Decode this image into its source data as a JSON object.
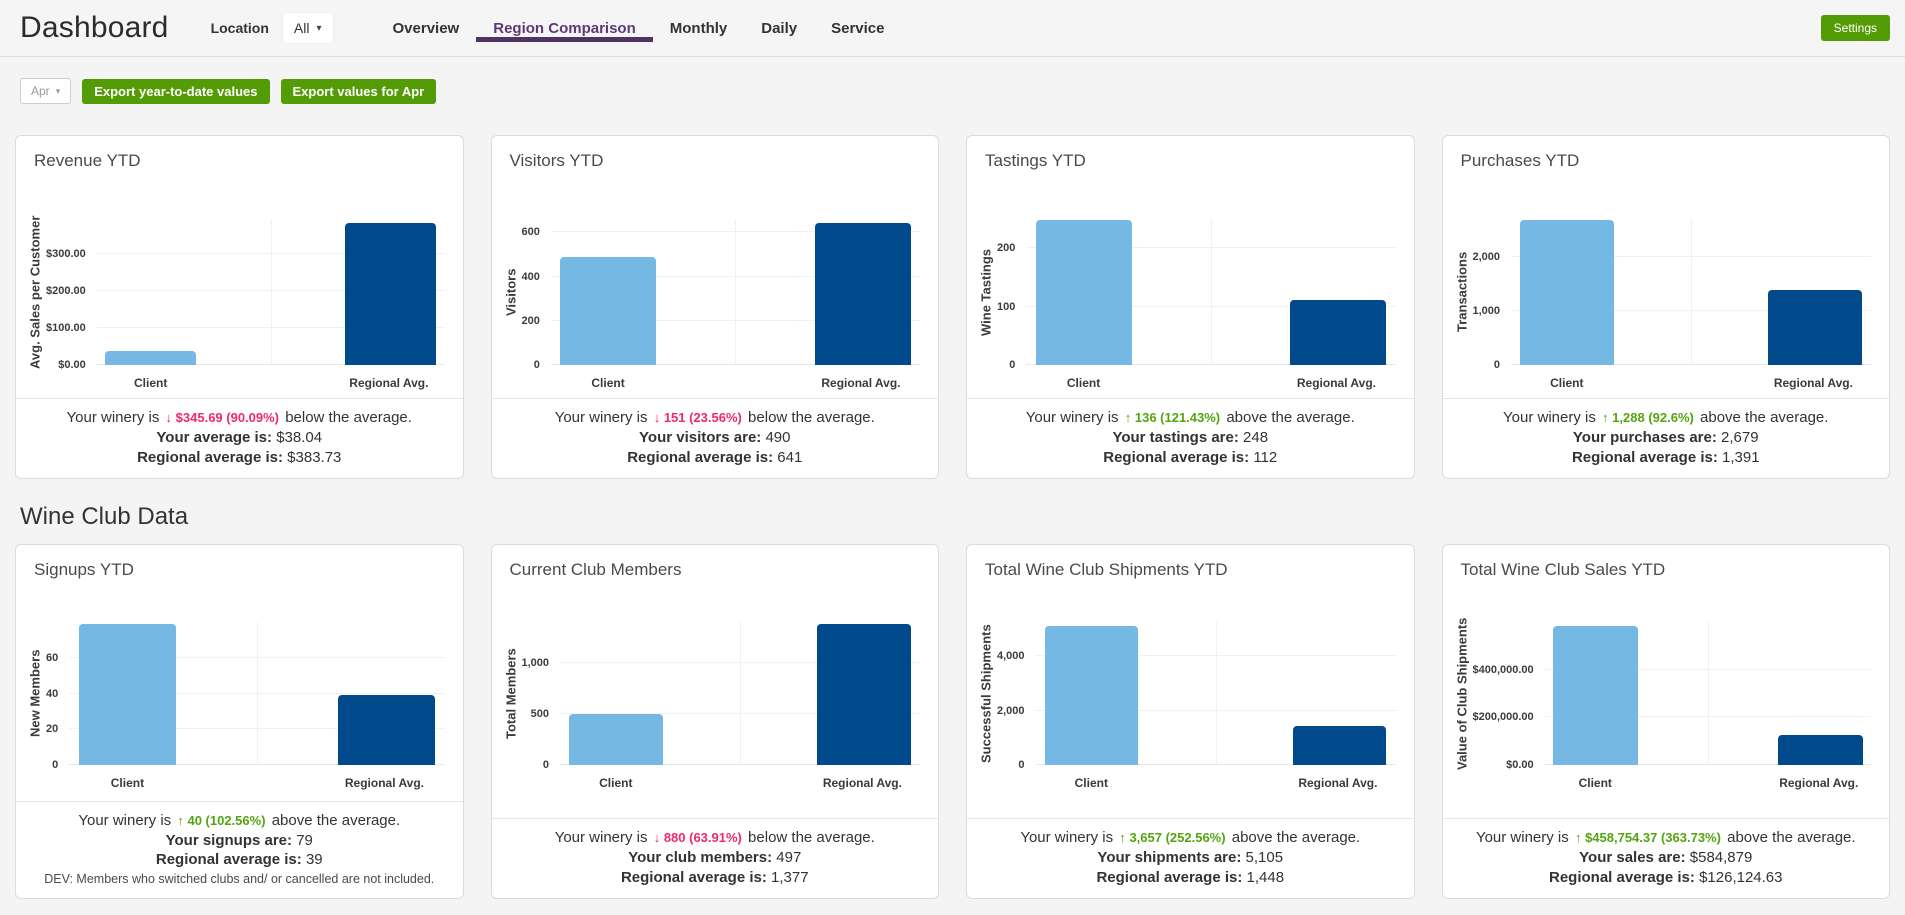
{
  "header": {
    "title": "Dashboard",
    "location_label": "Location",
    "location_value": "All",
    "tabs": [
      {
        "label": "Overview",
        "active": false
      },
      {
        "label": "Region Comparison",
        "active": true
      },
      {
        "label": "Monthly",
        "active": false
      },
      {
        "label": "Daily",
        "active": false
      },
      {
        "label": "Service",
        "active": false
      }
    ],
    "settings_label": "Settings"
  },
  "toolbar": {
    "month_value": "Apr",
    "export_ytd_label": "Export year-to-date values",
    "export_month_label": "Export values for Apr"
  },
  "section_title": "Wine Club Data",
  "colors": {
    "client_bar": "#74b8e3",
    "regional_bar": "#004a8c",
    "positive": "#54a412",
    "negative": "#ee2a68",
    "button_green": "#549c05",
    "tab_active": "#5e3a75",
    "tab_underline": "#503363"
  },
  "chart_data": [
    {
      "type": "bar",
      "title": "Revenue YTD",
      "ylabel": "Avg. Sales per Customer",
      "categories": [
        "Client",
        "Regional Avg."
      ],
      "values": [
        38.04,
        383.73
      ],
      "ymax": 395,
      "ticks": [
        {
          "v": 0,
          "label": "$0.00"
        },
        {
          "v": 100,
          "label": "$100.00"
        },
        {
          "v": 200,
          "label": "$200.00"
        },
        {
          "v": 300,
          "label": "$300.00"
        }
      ],
      "summary": {
        "prefix": "Your winery is",
        "arrow": "↓",
        "delta": "$345.69 (90.09%)",
        "direction": "down",
        "suffix": "below the average.",
        "line2_label": "Your average is:",
        "line2_value": "$38.04",
        "line3_label": "Regional average is:",
        "line3_value": "$383.73",
        "note": null
      }
    },
    {
      "type": "bar",
      "title": "Visitors YTD",
      "ylabel": "Visitors",
      "categories": [
        "Client",
        "Regional Avg."
      ],
      "values": [
        490,
        641
      ],
      "ymax": 660,
      "ticks": [
        {
          "v": 0,
          "label": "0"
        },
        {
          "v": 200,
          "label": "200"
        },
        {
          "v": 400,
          "label": "400"
        },
        {
          "v": 600,
          "label": "600"
        }
      ],
      "summary": {
        "prefix": "Your winery is",
        "arrow": "↓",
        "delta": "151 (23.56%)",
        "direction": "down",
        "suffix": "below the average.",
        "line2_label": "Your visitors are:",
        "line2_value": "490",
        "line3_label": "Regional average is:",
        "line3_value": "641",
        "note": null
      }
    },
    {
      "type": "bar",
      "title": "Tastings YTD",
      "ylabel": "Wine Tastings",
      "categories": [
        "Client",
        "Regional Avg."
      ],
      "values": [
        248,
        112
      ],
      "ymax": 250,
      "ticks": [
        {
          "v": 0,
          "label": "0"
        },
        {
          "v": 100,
          "label": "100"
        },
        {
          "v": 200,
          "label": "200"
        }
      ],
      "summary": {
        "prefix": "Your winery is",
        "arrow": "↑",
        "delta": "136 (121.43%)",
        "direction": "up",
        "suffix": "above the average.",
        "line2_label": "Your tastings are:",
        "line2_value": "248",
        "line3_label": "Regional average is:",
        "line3_value": "112",
        "note": null
      }
    },
    {
      "type": "bar",
      "title": "Purchases YTD",
      "ylabel": "Transactions",
      "categories": [
        "Client",
        "Regional Avg."
      ],
      "values": [
        2679,
        1391
      ],
      "ymax": 2700,
      "ticks": [
        {
          "v": 0,
          "label": "0"
        },
        {
          "v": 1000,
          "label": "1,000"
        },
        {
          "v": 2000,
          "label": "2,000"
        }
      ],
      "summary": {
        "prefix": "Your winery is",
        "arrow": "↑",
        "delta": "1,288 (92.6%)",
        "direction": "up",
        "suffix": "above the average.",
        "line2_label": "Your purchases are:",
        "line2_value": "2,679",
        "line3_label": "Regional average is:",
        "line3_value": "1,391",
        "note": null
      }
    },
    {
      "type": "bar",
      "title": "Signups YTD",
      "ylabel": "New Members",
      "categories": [
        "Client",
        "Regional Avg."
      ],
      "values": [
        79,
        39
      ],
      "ymax": 80,
      "ticks": [
        {
          "v": 0,
          "label": "0"
        },
        {
          "v": 20,
          "label": "20"
        },
        {
          "v": 40,
          "label": "40"
        },
        {
          "v": 60,
          "label": "60"
        }
      ],
      "summary": {
        "prefix": "Your winery is",
        "arrow": "↑",
        "delta": "40 (102.56%)",
        "direction": "up",
        "suffix": "above the average.",
        "line2_label": "Your signups are:",
        "line2_value": "79",
        "line3_label": "Regional average is:",
        "line3_value": "39",
        "note": "DEV: Members who switched clubs and/ or cancelled are not included."
      }
    },
    {
      "type": "bar",
      "title": "Current Club Members",
      "ylabel": "Total Members",
      "categories": [
        "Client",
        "Regional Avg."
      ],
      "values": [
        497,
        1377
      ],
      "ymax": 1400,
      "ticks": [
        {
          "v": 0,
          "label": "0"
        },
        {
          "v": 500,
          "label": "500"
        },
        {
          "v": 1000,
          "label": "1,000"
        }
      ],
      "summary": {
        "prefix": "Your winery is",
        "arrow": "↓",
        "delta": "880 (63.91%)",
        "direction": "down",
        "suffix": "below the average.",
        "line2_label": "Your club members:",
        "line2_value": "497",
        "line3_label": "Regional average is:",
        "line3_value": "1,377",
        "note": null
      }
    },
    {
      "type": "bar",
      "title": "Total Wine Club Shipments YTD",
      "ylabel": "Successful Shipments",
      "categories": [
        "Client",
        "Regional Avg."
      ],
      "values": [
        5105,
        1448
      ],
      "ymax": 5250,
      "ticks": [
        {
          "v": 0,
          "label": "0"
        },
        {
          "v": 2000,
          "label": "2,000"
        },
        {
          "v": 4000,
          "label": "4,000"
        }
      ],
      "summary": {
        "prefix": "Your winery is",
        "arrow": "↑",
        "delta": "3,657 (252.56%)",
        "direction": "up",
        "suffix": "above the average.",
        "line2_label": "Your shipments are:",
        "line2_value": "5,105",
        "line3_label": "Regional average is:",
        "line3_value": "1,448",
        "note": null
      }
    },
    {
      "type": "bar",
      "title": "Total Wine Club Sales YTD",
      "ylabel": "Value of Club Shipments",
      "categories": [
        "Client",
        "Regional Avg."
      ],
      "values": [
        584879,
        126124.63
      ],
      "ymax": 600000,
      "ticks": [
        {
          "v": 0,
          "label": "$0.00"
        },
        {
          "v": 200000,
          "label": "$200,000.00"
        },
        {
          "v": 400000,
          "label": "$400,000.00"
        }
      ],
      "summary": {
        "prefix": "Your winery is",
        "arrow": "↑",
        "delta": "$458,754.37 (363.73%)",
        "direction": "up",
        "suffix": "above the average.",
        "line2_label": "Your sales are:",
        "line2_value": "$584,879",
        "line3_label": "Regional average is:",
        "line3_value": "$126,124.63",
        "note": null
      }
    }
  ]
}
